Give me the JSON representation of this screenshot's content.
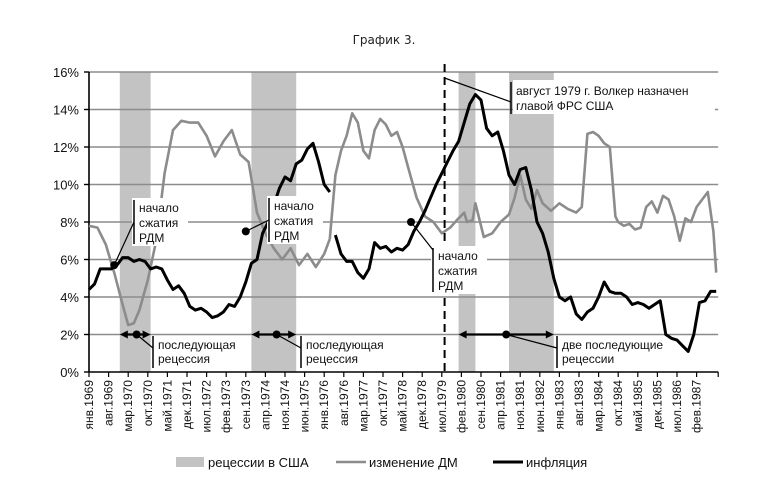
{
  "title": "График 3.",
  "chart_data": {
    "type": "line",
    "title": "График 3.",
    "xlabel": "",
    "ylabel": "",
    "ylim": [
      0,
      16
    ],
    "yticks": [
      "0%",
      "2%",
      "4%",
      "6%",
      "8%",
      "10%",
      "12%",
      "14%",
      "16%"
    ],
    "grid": true,
    "start_month": "янв.1969",
    "months_total": 225,
    "xtick_step_months": 7,
    "xticks": [
      "янв.1969",
      "авг.1969",
      "мар.1970",
      "окт.1970",
      "май.1971",
      "дек.1971",
      "июл.1972",
      "фев.1973",
      "сен.1973",
      "апр.1974",
      "ноя.1974",
      "июн.1975",
      "янв.1976",
      "авг.1976",
      "мар.1977",
      "окт.1977",
      "май.1978",
      "дек.1978",
      "июл.1979",
      "фев.1980",
      "сен.1980",
      "апр.1981",
      "ноя.1981",
      "июн.1982",
      "янв.1983",
      "авг.1983",
      "мар.1984",
      "окт.1984",
      "май.1985",
      "дек.1985",
      "июл.1986",
      "фев.1987"
    ],
    "recessions": [
      {
        "start": 11,
        "end": 22
      },
      {
        "start": 58,
        "end": 74
      },
      {
        "start": 132,
        "end": 138
      },
      {
        "start": 150,
        "end": 166
      }
    ],
    "series": [
      {
        "name": "изменение ДМ",
        "color": "#8c8c8c",
        "segments": [
          {
            "x": [
              0,
              3,
              6,
              9,
              12,
              14,
              16,
              18,
              21,
              24,
              27,
              30,
              33,
              36,
              39,
              42,
              45,
              48,
              51,
              54,
              57,
              60,
              63,
              66,
              69,
              72,
              75,
              78,
              81,
              84,
              86
            ],
            "y": [
              7.8,
              7.7,
              6.8,
              5.3,
              3.6,
              2.5,
              2.6,
              3.3,
              4.9,
              7.0,
              10.6,
              12.9,
              13.4,
              13.3,
              13.3,
              12.6,
              11.5,
              12.3,
              12.9,
              11.6,
              11.2,
              8.5,
              7.4,
              6.6,
              6.0,
              6.6,
              5.7,
              6.3,
              5.6,
              6.3,
              7.1
            ]
          },
          {
            "x": [
              86,
              88,
              90,
              92,
              94,
              96,
              98,
              100,
              102,
              104,
              106,
              108,
              110,
              112,
              114,
              117,
              120,
              123,
              126,
              129,
              132,
              134,
              135,
              137,
              138,
              141,
              144,
              147,
              150,
              152,
              154,
              156,
              158,
              160,
              162,
              165,
              168,
              171,
              174,
              176,
              178,
              180,
              182,
              184,
              186,
              188,
              189,
              191,
              193,
              195,
              197,
              199,
              201,
              203,
              205,
              207,
              209,
              211,
              213,
              215,
              217,
              219,
              221,
              223,
              224
            ],
            "y": [
              7.1,
              10.5,
              11.8,
              12.6,
              13.8,
              13.3,
              11.8,
              11.4,
              12.9,
              13.5,
              13.2,
              12.6,
              12.8,
              12.0,
              10.9,
              9.3,
              8.3,
              8.0,
              7.4,
              7.7,
              8.2,
              8.5,
              8.0,
              8.1,
              9.0,
              7.2,
              7.4,
              8.0,
              8.4,
              9.3,
              10.5,
              9.2,
              8.7,
              9.7,
              9.0,
              8.6,
              9.0,
              8.7,
              8.5,
              8.8,
              12.7,
              12.8,
              12.6,
              12.2,
              12.0,
              8.3,
              8.0,
              7.8,
              7.9,
              7.6,
              7.7,
              8.8,
              9.1,
              8.5,
              9.4,
              9.2,
              8.3,
              7.0,
              8.2,
              8.0,
              8.8,
              9.2,
              9.6,
              7.5,
              5.3
            ]
          }
        ]
      },
      {
        "name": "инфляция",
        "color": "#000000",
        "segments": [
          {
            "x": [
              0,
              2,
              4,
              6,
              8,
              10,
              12,
              14,
              16,
              18,
              20,
              22,
              24,
              26,
              28,
              30,
              32,
              34,
              36,
              38,
              40,
              42,
              44,
              46,
              48,
              50,
              52,
              54,
              56,
              58,
              60,
              62,
              64,
              66,
              68,
              70,
              72,
              74,
              76,
              78,
              80,
              82,
              84,
              86
            ],
            "y": [
              4.4,
              4.7,
              5.5,
              5.5,
              5.5,
              5.7,
              6.1,
              6.1,
              5.9,
              6.0,
              5.9,
              5.5,
              5.6,
              5.5,
              4.9,
              4.4,
              4.6,
              4.2,
              3.5,
              3.3,
              3.4,
              3.2,
              2.9,
              3.0,
              3.2,
              3.6,
              3.5,
              4.0,
              4.8,
              5.8,
              6.0,
              7.4,
              8.0,
              8.9,
              9.8,
              10.4,
              10.2,
              11.1,
              11.3,
              11.9,
              12.2,
              11.2,
              10.0,
              9.6
            ]
          },
          {
            "x": [
              88,
              90,
              92,
              94,
              96,
              98,
              100,
              102,
              104,
              106,
              108,
              110,
              112,
              114,
              116,
              118,
              120,
              122,
              124,
              126,
              128,
              130,
              132,
              134,
              136,
              138,
              140,
              142,
              144,
              146,
              148,
              150,
              152,
              154,
              156,
              158,
              160,
              162,
              164,
              166,
              168,
              170,
              172,
              174,
              176,
              178,
              180,
              182,
              184,
              186,
              188,
              190,
              192,
              194,
              196,
              198,
              200,
              202,
              204,
              206,
              208,
              210,
              212,
              214,
              216,
              218,
              220,
              222,
              224
            ],
            "y": [
              7.3,
              6.3,
              5.9,
              5.9,
              5.3,
              5.0,
              5.5,
              6.9,
              6.6,
              6.7,
              6.4,
              6.6,
              6.5,
              6.8,
              7.5,
              8.0,
              8.6,
              9.3,
              10.0,
              10.6,
              11.2,
              11.8,
              12.3,
              13.3,
              14.3,
              14.8,
              14.5,
              13.0,
              12.6,
              12.8,
              11.8,
              10.5,
              10.0,
              10.8,
              10.9,
              9.7,
              8.0,
              7.4,
              6.4,
              5.0,
              4.0,
              3.8,
              4.0,
              3.1,
              2.8,
              3.2,
              3.4,
              4.0,
              4.8,
              4.3,
              4.2,
              4.2,
              4.0,
              3.6,
              3.7,
              3.6,
              3.4,
              3.6,
              3.8,
              2.0,
              1.8,
              1.7,
              1.4,
              1.1,
              2.0,
              3.7,
              3.8,
              4.3,
              4.3
            ]
          }
        ]
      }
    ],
    "legend": [
      {
        "label": "рецессии в США",
        "kind": "band",
        "color": "#c3c3c3"
      },
      {
        "label": "изменение ДМ",
        "kind": "line",
        "color": "#8c8c8c"
      },
      {
        "label": "инфляция",
        "kind": "line",
        "color": "#000000"
      }
    ],
    "legend_position": "bottom",
    "volcker_month": 127,
    "annotations": [
      {
        "id": "rdm1",
        "lines": [
          "начало",
          "сжатия",
          "РДМ"
        ],
        "point_month": 9,
        "point_value": 5.7
      },
      {
        "id": "rdm2",
        "lines": [
          "начало",
          "сжатия",
          "РДМ"
        ],
        "point_month": 56,
        "point_value": 7.5
      },
      {
        "id": "rdm3",
        "lines": [
          "начало",
          "сжатия",
          "РДМ"
        ],
        "point_month": 115,
        "point_value": 8.0
      },
      {
        "id": "rec1",
        "lines": [
          "последующая",
          "рецессия"
        ],
        "from_month": 11,
        "to_month": 22,
        "dot_month": 17,
        "value": 2.0
      },
      {
        "id": "rec2",
        "lines": [
          "последующая",
          "рецессия"
        ],
        "from_month": 58,
        "to_month": 74,
        "dot_month": 67,
        "value": 2.0
      },
      {
        "id": "rec3",
        "lines": [
          "две последующие",
          "рецессии"
        ],
        "from_month": 132,
        "to_month": 166,
        "dot_month": 149,
        "value": 2.0
      },
      {
        "id": "volcker",
        "lines": [
          "август 1979 г. Волкер назначен",
          "главой ФРС США"
        ]
      }
    ],
    "colors": {
      "recession": "#c3c3c3",
      "grid": "#8c8c8c",
      "axis": "#000000"
    }
  }
}
